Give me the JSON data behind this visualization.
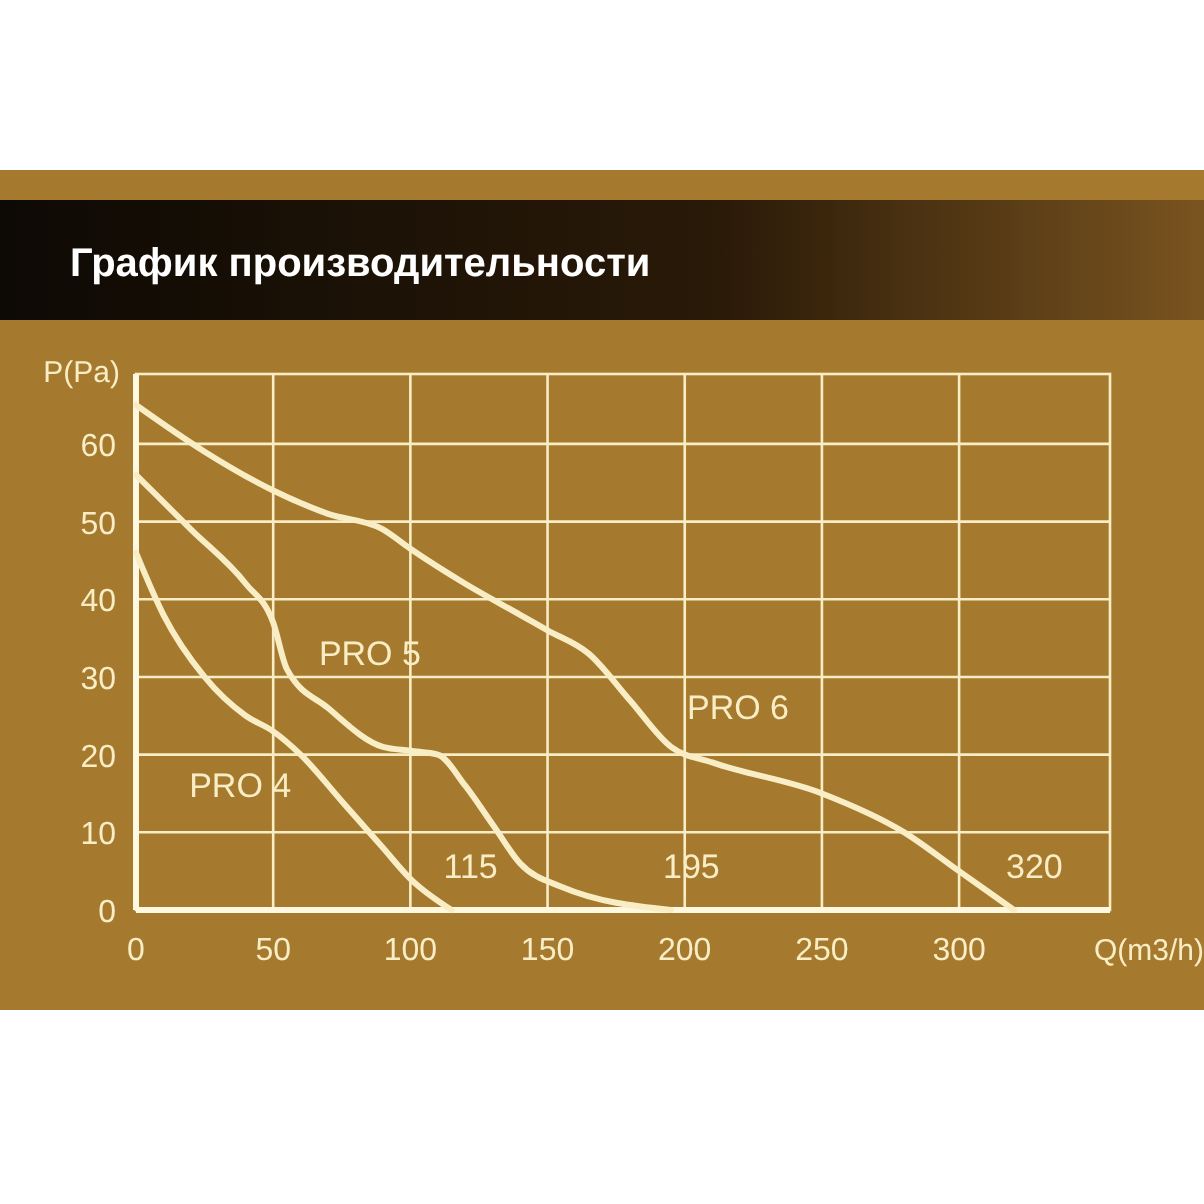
{
  "chart_data": {
    "type": "line",
    "title": "График производительности",
    "xlabel": "Q(m3/h)",
    "ylabel": "P(Pa)",
    "xlim": [
      0,
      355
    ],
    "ylim": [
      0,
      69
    ],
    "xticks": [
      0,
      50,
      100,
      150,
      200,
      250,
      300
    ],
    "yticks": [
      0,
      10,
      20,
      30,
      40,
      50,
      60
    ],
    "grid": true,
    "marker": "none",
    "line_style": "solid",
    "series": [
      {
        "name": "PRO 4",
        "color": "#f8edc4",
        "x": [
          0,
          10,
          25,
          40,
          50,
          60,
          75,
          90,
          100,
          115
        ],
        "values": [
          46,
          38,
          30,
          25,
          23,
          20,
          14,
          8,
          4,
          0
        ]
      },
      {
        "name": "PRO 5",
        "color": "#f8edc4",
        "x": [
          0,
          20,
          40,
          50,
          55,
          70,
          90,
          100,
          110,
          120,
          130,
          140,
          155,
          195
        ],
        "values": [
          56,
          49,
          42,
          37,
          31,
          26,
          21,
          20.5,
          20,
          16,
          11,
          6,
          3,
          0
        ]
      },
      {
        "name": "PRO 6",
        "color": "#f8edc4",
        "x": [
          0,
          25,
          50,
          70,
          90,
          100,
          120,
          140,
          150,
          165,
          180,
          195,
          210,
          250,
          280,
          300,
          320
        ],
        "values": [
          65,
          59,
          54,
          51,
          49,
          46.5,
          42,
          38,
          36,
          33,
          27,
          21,
          19,
          15,
          10,
          5,
          0
        ]
      }
    ],
    "annotations": [
      {
        "text": "115",
        "x": 115,
        "y": 0
      },
      {
        "text": "195",
        "x": 195,
        "y": 0
      },
      {
        "text": "320",
        "x": 320,
        "y": 0
      }
    ]
  }
}
